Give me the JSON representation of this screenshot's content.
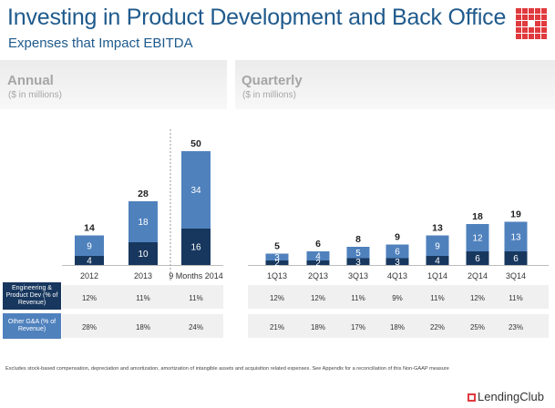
{
  "header": {
    "title": "Investing in Product Development and Back Office",
    "subtitle": "Expenses that Impact EBITDA"
  },
  "annual_panel": {
    "title": "Annual",
    "unit": "($ in millions)"
  },
  "quarterly_panel": {
    "title": "Quarterly",
    "unit": "($ in millions)"
  },
  "rows": {
    "engineering_label": "Engineering & Product Dev (% of Revenue)",
    "ga_label": "Other G&A (% of Revenue)"
  },
  "footnote": "Excludes stock-based compensation, depreciation and amortization, amortization of intangible assets and acquisition related expenses. See Appendix for a reconciliation of this Non-GAAP measure",
  "brand": {
    "name": "LendingClub"
  },
  "colors": {
    "engineering": "#17375e",
    "other_ga": "#4f81bd",
    "title": "#1f5a8c",
    "logo": "#e03a3e"
  },
  "chart_data": [
    {
      "type": "bar",
      "stacked": true,
      "categories": [
        "2012",
        "2013",
        "9 Months 2014"
      ],
      "series": [
        {
          "name": "Engineering & Product Dev",
          "values": [
            4,
            10,
            16
          ]
        },
        {
          "name": "Other G&A",
          "values": [
            9,
            18,
            34
          ]
        }
      ],
      "totals": [
        "14",
        "28",
        "50"
      ],
      "engineering_pct": [
        "12%",
        "11%",
        "11%"
      ],
      "ga_pct": [
        "28%",
        "18%",
        "24%"
      ]
    },
    {
      "type": "bar",
      "stacked": true,
      "categories": [
        "1Q13",
        "2Q13",
        "3Q13",
        "4Q13",
        "1Q14",
        "2Q14",
        "3Q14"
      ],
      "series": [
        {
          "name": "Engineering & Product Dev",
          "values": [
            2,
            2,
            3,
            3,
            4,
            6,
            6
          ]
        },
        {
          "name": "Other G&A",
          "values": [
            3,
            4,
            5,
            6,
            9,
            12,
            13
          ]
        }
      ],
      "totals": [
        "5",
        "6",
        "8",
        "9",
        "13",
        "18",
        "19"
      ],
      "engineering_pct": [
        "12%",
        "12%",
        "11%",
        "9%",
        "11%",
        "12%",
        "11%"
      ],
      "ga_pct": [
        "21%",
        "18%",
        "17%",
        "18%",
        "22%",
        "25%",
        "23%"
      ]
    }
  ]
}
